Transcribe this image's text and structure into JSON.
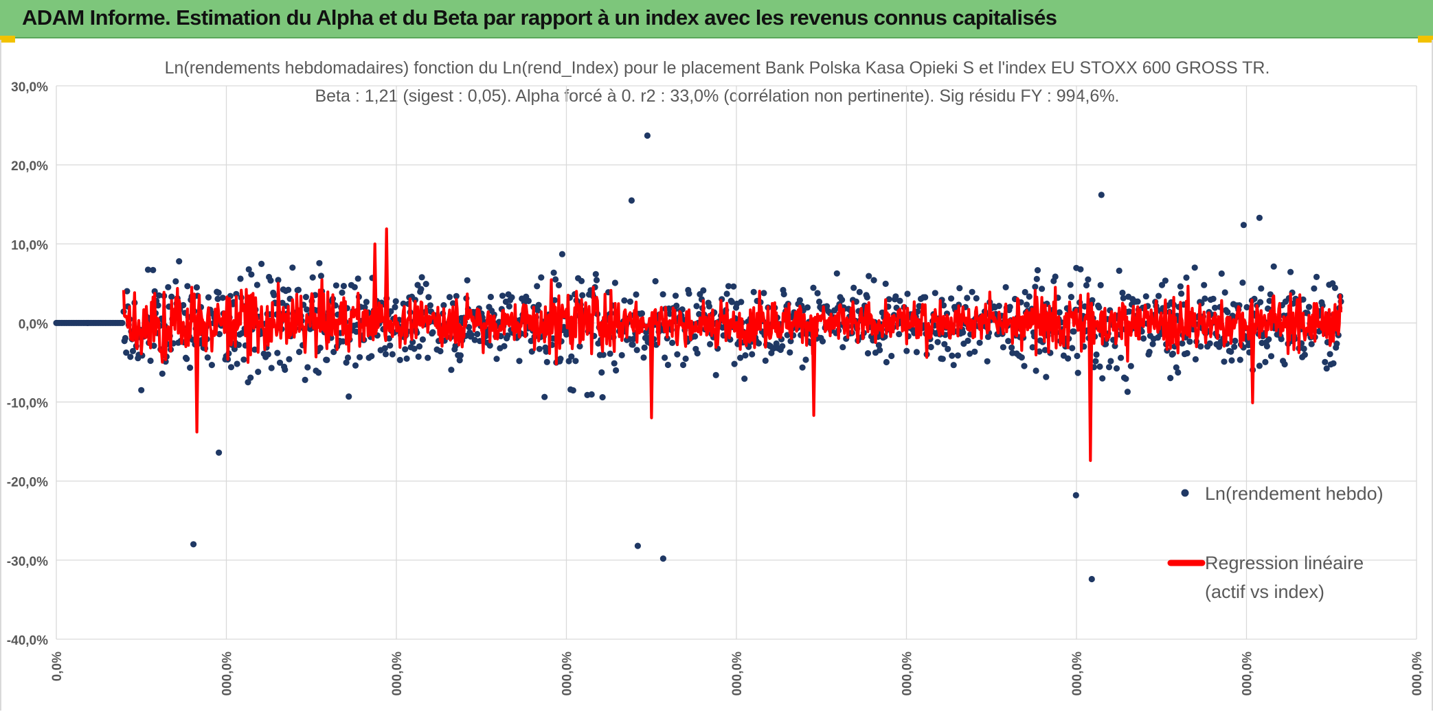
{
  "header": {
    "title": "ADAM Informe. Estimation du Alpha et du Beta par rapport à un index avec les revenus connus capitalisés"
  },
  "colors": {
    "banner": "#7dc67b",
    "scatter": "#1f3864",
    "regression": "#ff0000",
    "grid": "#d9d9d9",
    "corner": "#f2c200"
  },
  "chart_data": {
    "type": "scatter",
    "title": "Ln(rendements hebdomadaires) fonction du Ln(rend_Index) pour le placement Bank Polska Kasa Opieki S et l'index EU STOXX 600 GROSS TR.",
    "subtitle": "Beta : 1,21 (sigest : 0,05). Alpha forcé à 0. r2 : 33,0% (corrélation non pertinente). Sig résidu FY : 994,6%.",
    "ylim": [
      -40,
      30
    ],
    "y_ticks": [
      "30,0%",
      "20,0%",
      "10,0%",
      "0,0%",
      "-10,0%",
      "-20,0%",
      "-30,0%",
      "-40,0%"
    ],
    "y_tick_values": [
      30,
      20,
      10,
      0,
      -10,
      -20,
      -30,
      -40
    ],
    "x_ticks": [
      "0,0%",
      "000,0%",
      "000,0%",
      "000,0%",
      "000,0%",
      "000,0%",
      "000,0%",
      "000,0%",
      "000,0%"
    ],
    "grid": true,
    "legend_position": "right",
    "series": [
      {
        "name": "Ln(rendement hebdo)",
        "type": "scatter",
        "approx_points": 1450,
        "flat_zero_run": 40,
        "outliers": [
          {
            "x": 0.1,
            "y": -28.0
          },
          {
            "x": 0.1,
            "y": -16.4
          },
          {
            "x": 0.6,
            "y": -28.2
          },
          {
            "x": 0.6,
            "y": -29.8
          },
          {
            "x": 0.6,
            "y": 23.7
          },
          {
            "x": 0.6,
            "y": 15.5
          },
          {
            "x": 1.1,
            "y": -32.4
          },
          {
            "x": 1.1,
            "y": -21.8
          },
          {
            "x": 1.1,
            "y": 16.2
          },
          {
            "x": 1.3,
            "y": 13.3
          },
          {
            "x": 1.3,
            "y": 12.4
          }
        ]
      },
      {
        "name": "Regression linéaire (actif vs index)",
        "type": "line",
        "beta": 1.21,
        "alpha": 0,
        "extremes": [
          {
            "x": 0.1,
            "y": -13.8
          },
          {
            "x": 0.3,
            "y": 11.9
          },
          {
            "x": 0.3,
            "y": 10.0
          },
          {
            "x": 0.6,
            "y": -12.0
          },
          {
            "x": 0.8,
            "y": -11.7
          },
          {
            "x": 1.1,
            "y": -17.4
          },
          {
            "x": 1.3,
            "y": -10.1
          }
        ]
      }
    ],
    "legend": {
      "scatter_label": "Ln(rendement hebdo)",
      "line_label_1": "Regression linéaire",
      "line_label_2": "(actif vs index)"
    }
  }
}
